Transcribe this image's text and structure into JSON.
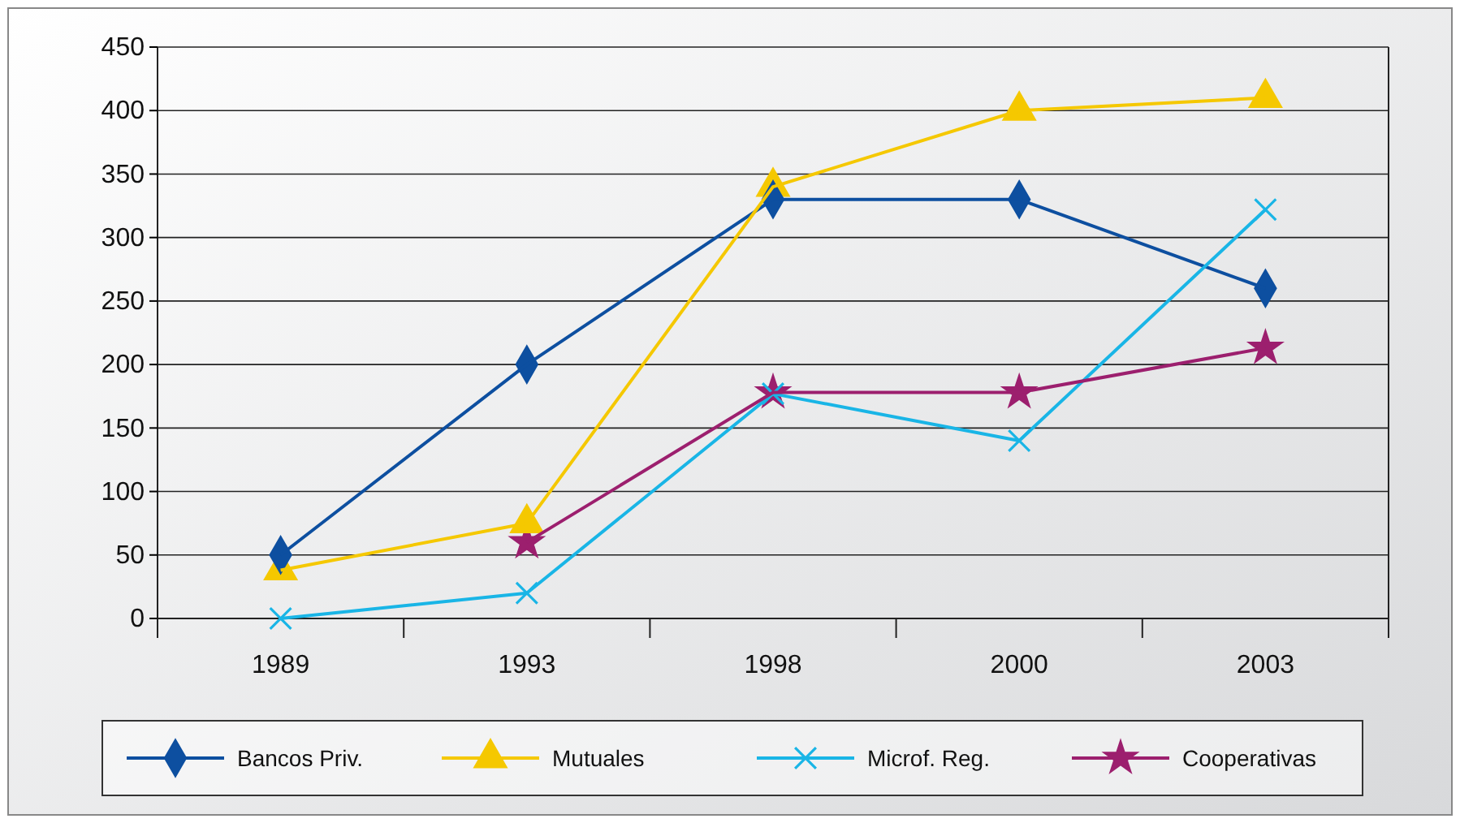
{
  "chart_data": {
    "type": "line",
    "categories": [
      "1989",
      "1993",
      "1998",
      "2000",
      "2003"
    ],
    "series": [
      {
        "name": "Bancos Priv.",
        "color": "#0d4fa0",
        "marker": "diamond",
        "values": [
          50,
          200,
          330,
          330,
          260
        ]
      },
      {
        "name": "Mutuales",
        "color": "#f5c800",
        "marker": "triangle",
        "values": [
          38,
          75,
          340,
          400,
          410
        ]
      },
      {
        "name": "Microf. Reg.",
        "color": "#19b5e6",
        "marker": "cross",
        "values": [
          0,
          20,
          177,
          140,
          322
        ]
      },
      {
        "name": "Cooperativas",
        "color": "#9c1f6e",
        "marker": "star",
        "values": [
          null,
          60,
          178,
          178,
          213
        ]
      }
    ],
    "ylim": [
      0,
      450
    ],
    "yticks": [
      0,
      50,
      100,
      150,
      200,
      250,
      300,
      350,
      400,
      450
    ],
    "grid": "y",
    "legend": "bottom"
  }
}
